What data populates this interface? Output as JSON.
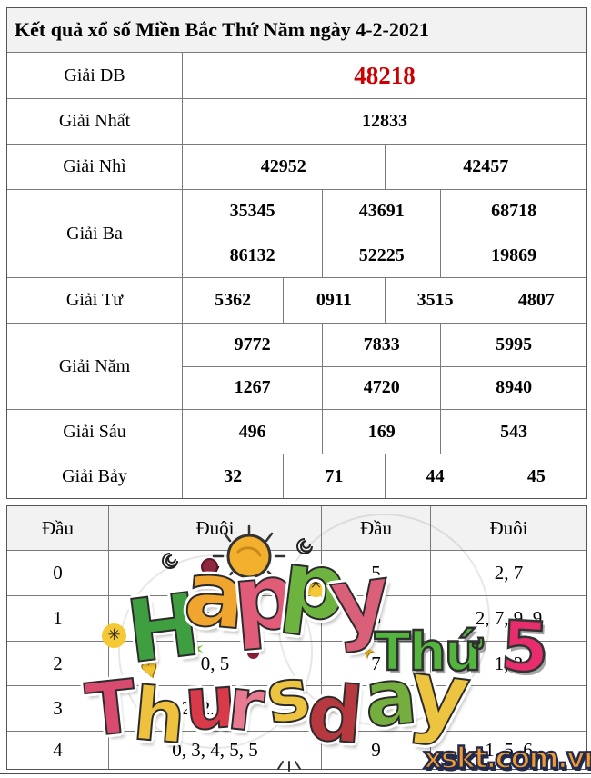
{
  "title": "Kết quả xổ số Miền Bắc Thứ Năm ngày 4-2-2021",
  "results_table": {
    "rows": [
      {
        "label": "Giải ĐB",
        "groups": [
          [
            "48218"
          ]
        ]
      },
      {
        "label": "Giải Nhất",
        "groups": [
          [
            "12833"
          ]
        ]
      },
      {
        "label": "Giải Nhì",
        "groups": [
          [
            "42952",
            "42457"
          ]
        ]
      },
      {
        "label": "Giải Ba",
        "groups": [
          [
            "35345",
            "43691",
            "68718"
          ],
          [
            "86132",
            "52225",
            "19869"
          ]
        ]
      },
      {
        "label": "Giải Tư",
        "groups": [
          [
            "5362",
            "0911",
            "3515",
            "4807"
          ]
        ]
      },
      {
        "label": "Giải Năm",
        "groups": [
          [
            "9772",
            "7833",
            "5995"
          ],
          [
            "1267",
            "4720",
            "8940"
          ]
        ]
      },
      {
        "label": "Giải Sáu",
        "groups": [
          [
            "496",
            "169",
            "543"
          ]
        ]
      },
      {
        "label": "Giải Bảy",
        "groups": [
          [
            "32",
            "71",
            "44",
            "45"
          ]
        ]
      }
    ]
  },
  "head_tail_table": {
    "headers": [
      "Đầu",
      "Đuôi",
      "Đầu",
      "Đuôi"
    ],
    "rows": [
      [
        "0",
        "7",
        "5",
        "2, 7"
      ],
      [
        "1",
        "1, 5, 8, 8",
        "6",
        "2, 7, 9, 9"
      ],
      [
        "2",
        "0, 5",
        "7",
        "1, 2"
      ],
      [
        "3",
        "2, 2, 3, 3",
        "8",
        ""
      ],
      [
        "4",
        "0, 3, 4, 5, 5",
        "9",
        "1, 5, 6"
      ]
    ]
  },
  "overlay": {
    "happy_letters": [
      {
        "ch": "H",
        "color": "#3f9e3f"
      },
      {
        "ch": "a",
        "color": "#f0a62e"
      },
      {
        "ch": "p",
        "color": "#e05c78"
      },
      {
        "ch": "p",
        "color": "#6db33f"
      },
      {
        "ch": "y",
        "color": "#d96078"
      }
    ],
    "thursday_letters": [
      {
        "ch": "T",
        "color": "#d94b6e"
      },
      {
        "ch": "h",
        "color": "#eec23f"
      },
      {
        "ch": "u",
        "color": "#d93a4a"
      },
      {
        "ch": "r",
        "color": "#e87a92"
      },
      {
        "ch": "s",
        "color": "#ecc43f"
      },
      {
        "ch": "d",
        "color": "#b5393f"
      },
      {
        "ch": "a",
        "color": "#74ae3f"
      },
      {
        "ch": "y",
        "color": "#ecc43f"
      }
    ],
    "thu_label": "Thứ",
    "thu_number": "5",
    "watermark": "xskt.com.vn"
  },
  "colors": {
    "special_prize": "#cc0000",
    "header_bg": "#f2f2f2",
    "table_border": "#7a7a7a",
    "thu_green": "#53b43e",
    "thu_number_pink": "#e82d6e",
    "watermark_fill": "#f29b2f",
    "watermark_outline": "#222a4d"
  }
}
